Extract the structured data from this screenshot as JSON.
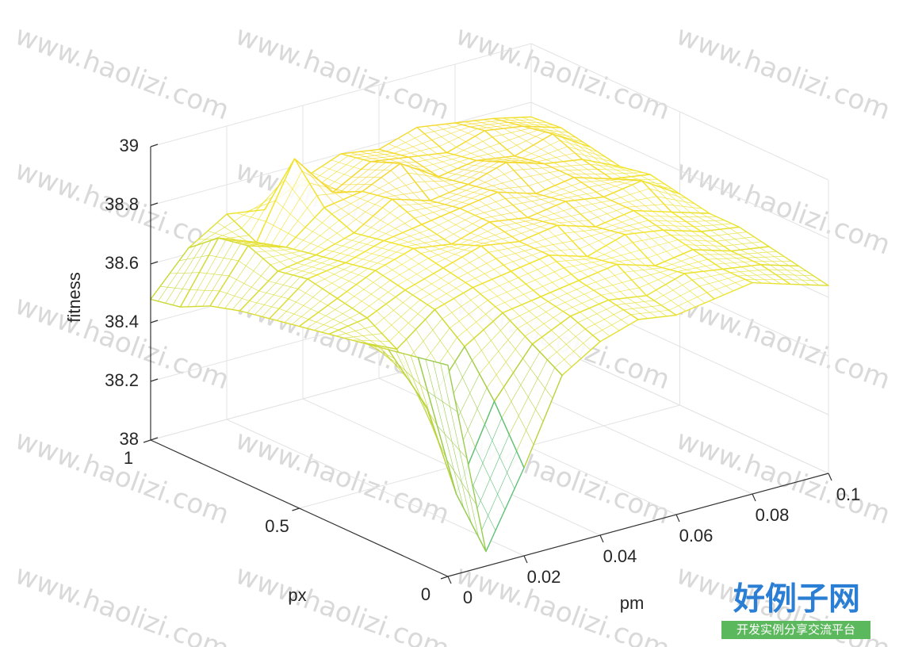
{
  "chart_data": {
    "type": "mesh",
    "xlabel": "pm",
    "ylabel": "px",
    "zlabel": "fitness",
    "x": [
      0,
      0.01,
      0.02,
      0.03,
      0.04,
      0.05,
      0.06,
      0.07,
      0.08,
      0.09,
      0.1
    ],
    "y": [
      0,
      0.1,
      0.2,
      0.3,
      0.4,
      0.5,
      0.6,
      0.7,
      0.8,
      0.9,
      1
    ],
    "z": [
      [
        38.72,
        38.05,
        38.3,
        38.58,
        38.66,
        38.7,
        38.68,
        38.7,
        38.72,
        38.68,
        38.64
      ],
      [
        38.7,
        38.2,
        38.48,
        38.64,
        38.7,
        38.72,
        38.7,
        38.74,
        38.72,
        38.7,
        38.66
      ],
      [
        38.68,
        38.45,
        38.62,
        38.7,
        38.72,
        38.74,
        38.76,
        38.72,
        38.74,
        38.7,
        38.68
      ],
      [
        38.66,
        38.6,
        38.7,
        38.74,
        38.76,
        38.78,
        38.74,
        38.78,
        38.76,
        38.72,
        38.7
      ],
      [
        38.64,
        38.66,
        38.72,
        38.76,
        38.8,
        38.78,
        38.8,
        38.76,
        38.78,
        38.74,
        38.7
      ],
      [
        38.62,
        38.68,
        38.74,
        38.78,
        38.76,
        38.8,
        38.78,
        38.8,
        38.78,
        38.8,
        38.72
      ],
      [
        38.6,
        38.7,
        38.72,
        38.76,
        38.78,
        38.8,
        38.82,
        38.78,
        38.8,
        38.76,
        38.74
      ],
      [
        38.58,
        38.68,
        38.7,
        38.74,
        38.82,
        38.78,
        38.8,
        38.84,
        38.8,
        38.78,
        38.72
      ],
      [
        38.55,
        38.72,
        38.68,
        38.78,
        38.8,
        38.86,
        38.78,
        38.8,
        38.78,
        38.82,
        38.74
      ],
      [
        38.5,
        38.7,
        38.65,
        38.9,
        38.75,
        38.82,
        38.8,
        38.78,
        38.82,
        38.8,
        38.76
      ],
      [
        38.48,
        38.62,
        38.7,
        38.68,
        38.75,
        38.8,
        38.78,
        38.82,
        38.8,
        38.78,
        38.75
      ]
    ],
    "xlim": [
      0,
      0.1
    ],
    "xticks": [
      0,
      0.02,
      0.04,
      0.06,
      0.08,
      0.1
    ],
    "ylim": [
      0,
      1
    ],
    "yticks": [
      0,
      0.5,
      1
    ],
    "zlim": [
      38,
      39
    ],
    "zticks": [
      38,
      38.2,
      38.4,
      38.6,
      38.8,
      39
    ],
    "grid": true,
    "colormap": [
      "#1fa7c9",
      "#5cc07a",
      "#b8d23a",
      "#f2e52e",
      "#f6b13c"
    ]
  },
  "watermark": "www.haolizi.com",
  "logo": {
    "title": "好例子网",
    "subtitle": "开发实例分享交流平台"
  }
}
